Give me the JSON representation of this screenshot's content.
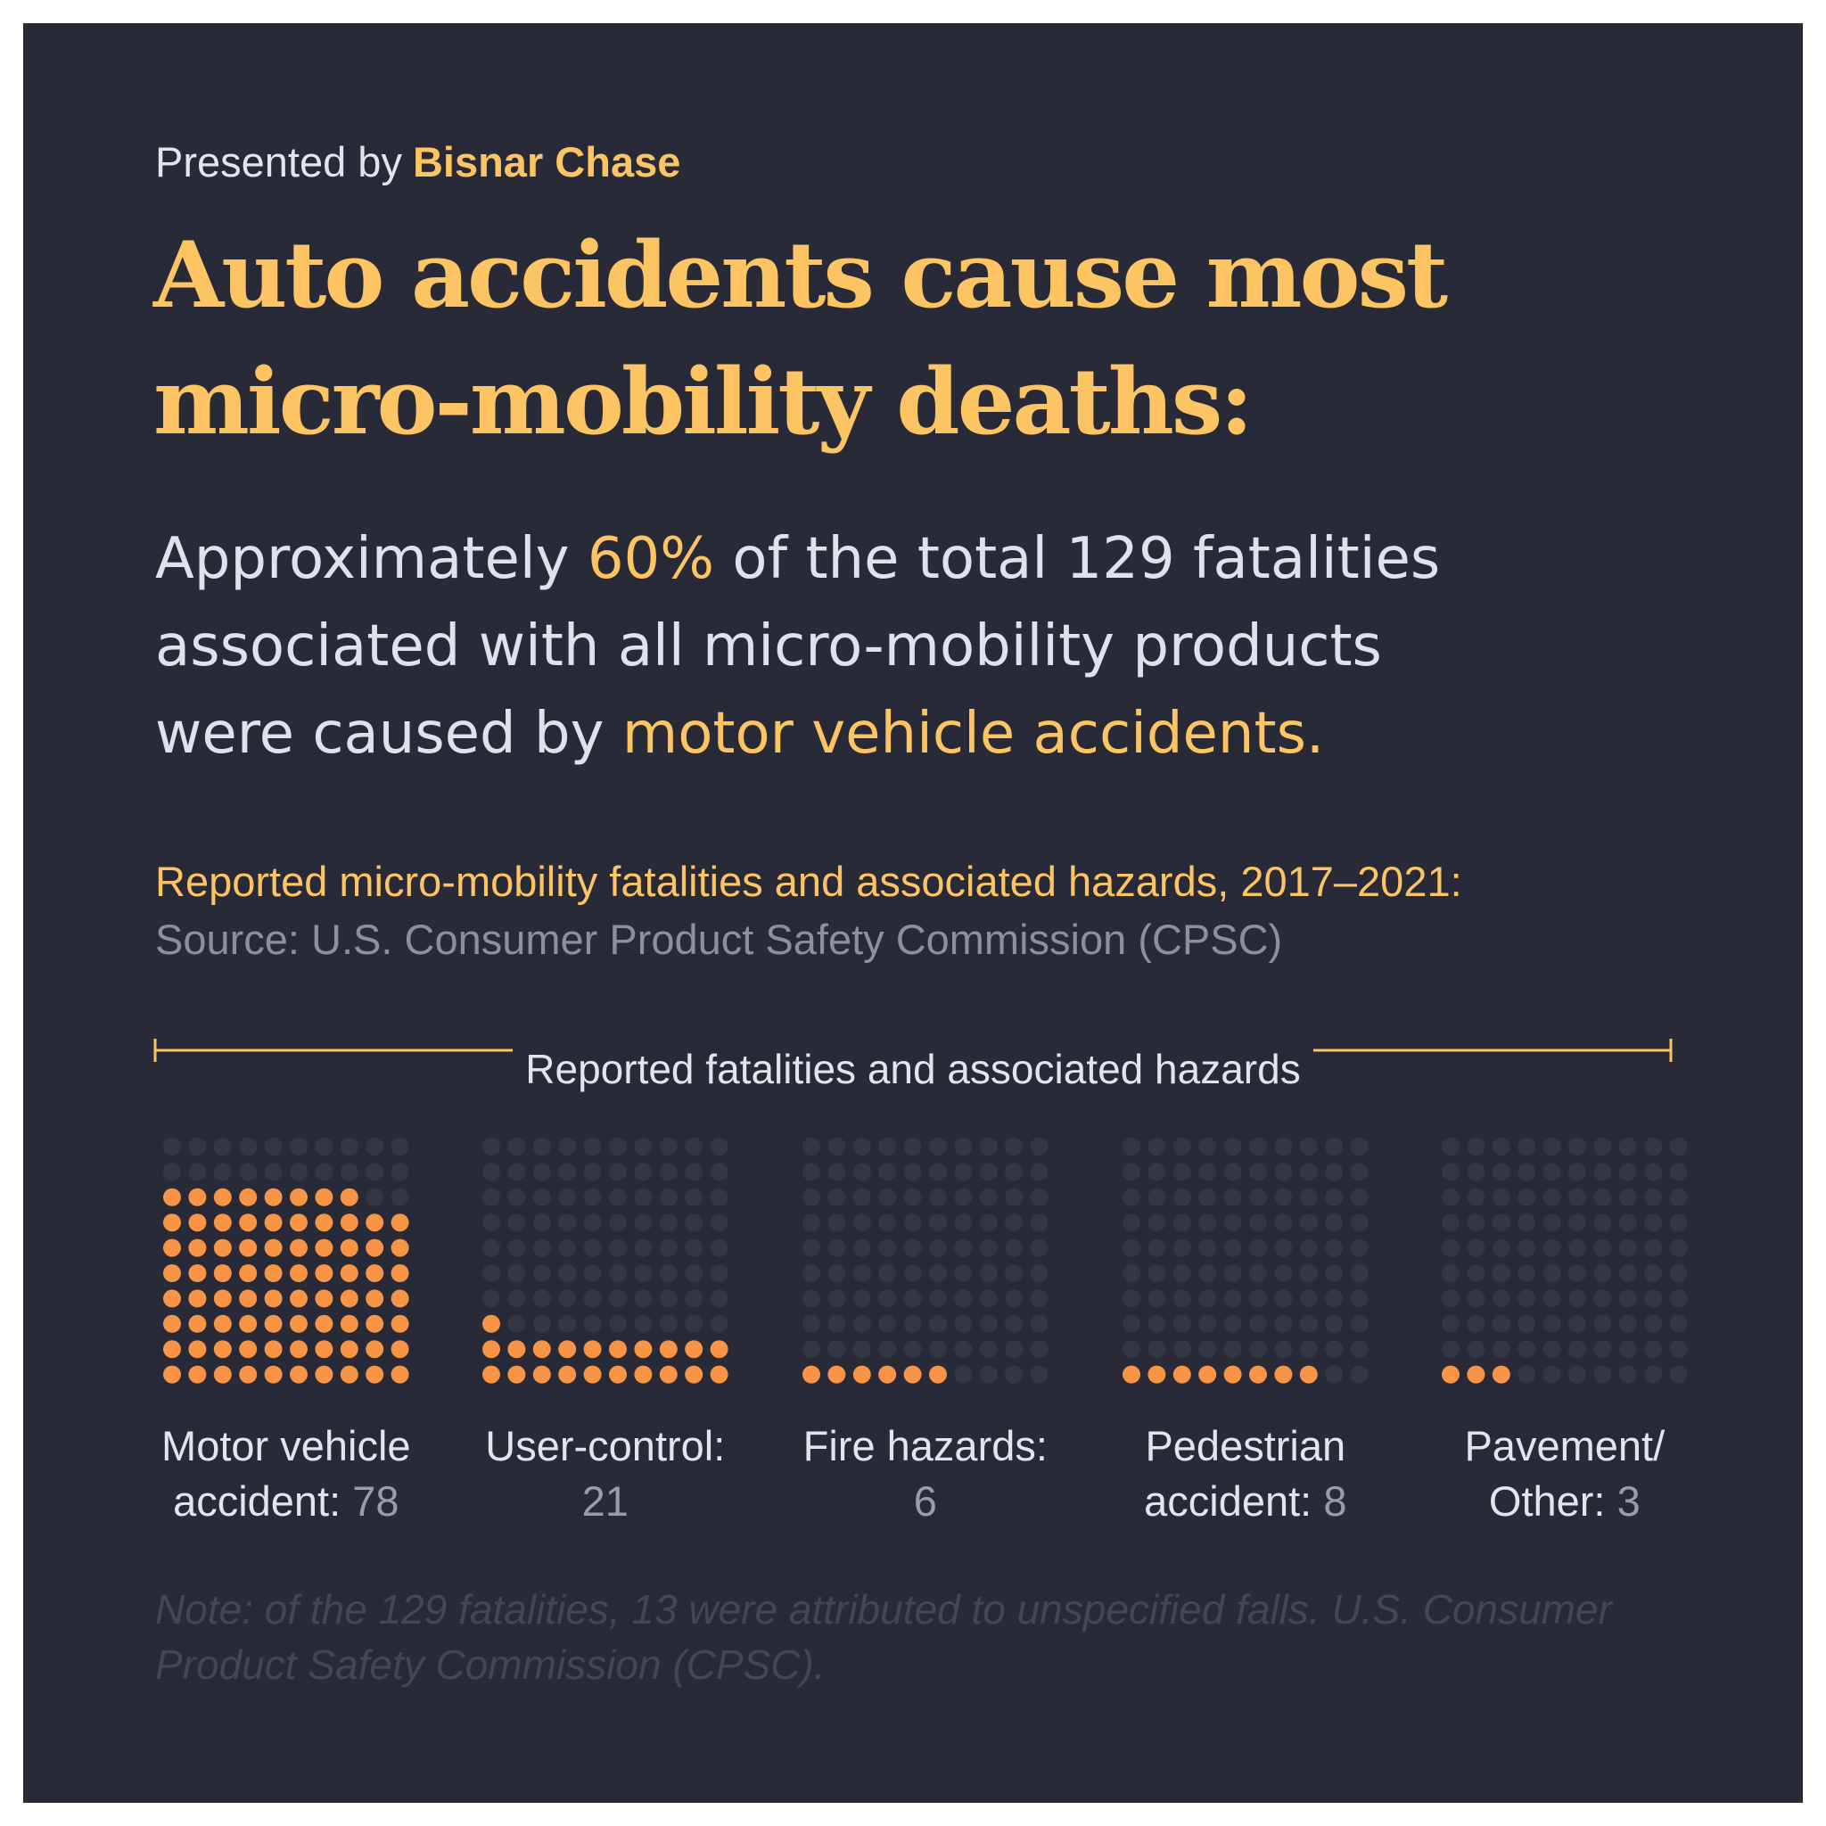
{
  "header": {
    "presented_prefix": "Presented by",
    "presented_brand": "Bisnar Chase",
    "title_line1": "Auto accidents cause most",
    "title_line2": "micro-mobility deaths:"
  },
  "subtitle": {
    "part1": "Approximately",
    "part2": "60%",
    "part3": "of the total 129 fatalities",
    "part4": "associated with all micro-mobility products",
    "part5": "were caused by",
    "part6": "motor vehicle accidents."
  },
  "chart_data": {
    "type": "waffle",
    "title": "Reported micro-mobility fatalities and associated hazards, 2017–2021:",
    "source": "Source: U.S. Consumer Product Safety Commission (CPSC)",
    "group_label": "Reported fatalities and associated hazards",
    "grid": {
      "rows": 10,
      "cols": 10
    },
    "categories": [
      {
        "line1": "Motor vehicle",
        "line2": "accident:",
        "value": 78
      },
      {
        "line1": "User-control:",
        "line2": "",
        "value": 21
      },
      {
        "line1": "Fire hazards:",
        "line2": "",
        "value": 6
      },
      {
        "line1": "Pedestrian",
        "line2": "accident:",
        "value": 8
      },
      {
        "line1": "Pavement/",
        "line2": "Other:",
        "value": 3
      }
    ],
    "note": "Note: of the 129 fatalities, 13 were attributed to unspecified falls. U.S. Consumer Product Safety Commission (CPSC)."
  },
  "colors": {
    "background": "#282a38",
    "accent": "#fcc462",
    "filled_dot": "#f79446",
    "empty_dot": "#343644"
  }
}
